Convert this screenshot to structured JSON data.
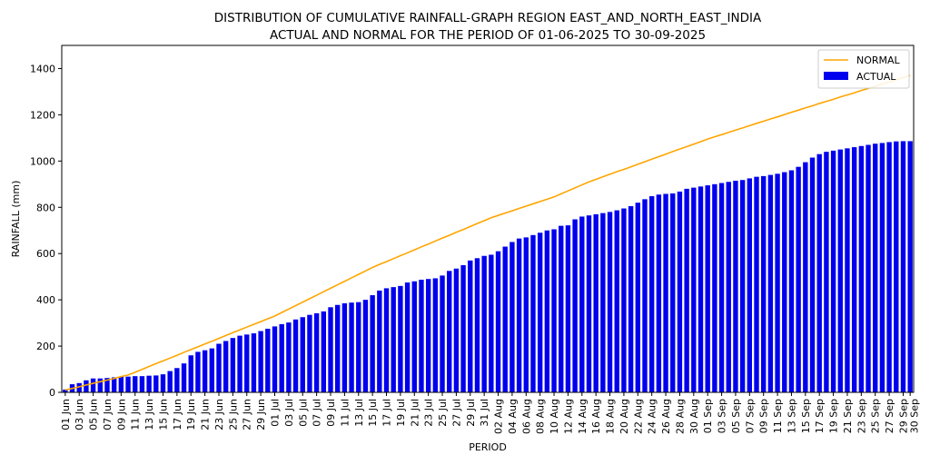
{
  "chart_data": {
    "type": "bar",
    "title": "DISTRIBUTION OF CUMULATIVE RAINFALL-GRAPH REGION EAST_AND_NORTH_EAST_INDIA",
    "subtitle": "ACTUAL AND NORMAL FOR THE PERIOD OF 01-06-2025 TO 30-09-2025",
    "xlabel": "PERIOD",
    "ylabel": "RAINFALL (mm)",
    "ylim": [
      0,
      1500
    ],
    "yticks": [
      0,
      200,
      400,
      600,
      800,
      1000,
      1200,
      1400
    ],
    "grid": false,
    "legend_placement": "top-right",
    "colors": {
      "normal": "#FFA500",
      "actual": "#0000EE"
    },
    "tick_labels": [
      "01 Jun",
      "03 Jun",
      "05 Jun",
      "07 Jun",
      "09 Jun",
      "11 Jun",
      "13 Jun",
      "15 Jun",
      "17 Jun",
      "19 Jun",
      "21 Jun",
      "23 Jun",
      "25 Jun",
      "27 Jun",
      "29 Jun",
      "01 Jul",
      "03 Jul",
      "05 Jul",
      "07 Jul",
      "09 Jul",
      "11 Jul",
      "13 Jul",
      "15 Jul",
      "17 Jul",
      "19 Jul",
      "21 Jul",
      "23 Jul",
      "25 Jul",
      "27 Jul",
      "29 Jul",
      "31 Jul",
      "02 Aug",
      "04 Aug",
      "06 Aug",
      "08 Aug",
      "10 Aug",
      "12 Aug",
      "14 Aug",
      "16 Aug",
      "18 Aug",
      "20 Aug",
      "22 Aug",
      "24 Aug",
      "26 Aug",
      "28 Aug",
      "30 Aug",
      "01 Sep",
      "03 Sep",
      "05 Sep",
      "07 Sep",
      "09 Sep",
      "11 Sep",
      "13 Sep",
      "15 Sep",
      "17 Sep",
      "19 Sep",
      "21 Sep",
      "23 Sep",
      "25 Sep",
      "27 Sep",
      "29 Sep",
      "30 Sep"
    ],
    "tick_days": [
      0,
      2,
      4,
      6,
      8,
      10,
      12,
      14,
      16,
      18,
      20,
      22,
      24,
      26,
      28,
      30,
      32,
      34,
      36,
      38,
      40,
      42,
      44,
      46,
      48,
      50,
      52,
      54,
      56,
      58,
      60,
      62,
      64,
      66,
      68,
      70,
      72,
      74,
      76,
      78,
      80,
      82,
      84,
      86,
      88,
      90,
      92,
      94,
      96,
      98,
      100,
      102,
      104,
      106,
      108,
      110,
      112,
      114,
      116,
      118,
      120,
      121
    ],
    "series": [
      {
        "name": "NORMAL",
        "type": "line",
        "values": [
          10,
          17,
          24,
          32,
          39,
          46,
          53,
          60,
          68,
          75,
          87,
          99,
          112,
          124,
          136,
          148,
          160,
          173,
          185,
          197,
          209,
          221,
          233,
          246,
          258,
          270,
          282,
          294,
          306,
          318,
          330,
          345,
          360,
          375,
          390,
          405,
          420,
          435,
          450,
          465,
          480,
          495,
          510,
          525,
          540,
          553,
          565,
          578,
          591,
          603,
          616,
          629,
          641,
          654,
          667,
          679,
          692,
          704,
          717,
          730,
          742,
          755,
          765,
          775,
          785,
          795,
          805,
          815,
          825,
          835,
          845,
          858,
          871,
          884,
          897,
          910,
          921,
          932,
          943,
          954,
          964,
          975,
          986,
          997,
          1008,
          1019,
          1030,
          1041,
          1052,
          1062,
          1073,
          1084,
          1095,
          1105,
          1114,
          1124,
          1134,
          1143,
          1153,
          1163,
          1172,
          1182,
          1191,
          1201,
          1211,
          1220,
          1230,
          1239,
          1249,
          1258,
          1267,
          1277,
          1286,
          1295,
          1305,
          1314,
          1323,
          1333,
          1342,
          1351,
          1361,
          1370
        ]
      },
      {
        "name": "ACTUAL",
        "type": "bar",
        "values": [
          12,
          35,
          40,
          52,
          60,
          60,
          62,
          65,
          68,
          68,
          70,
          70,
          72,
          73,
          78,
          92,
          105,
          125,
          160,
          175,
          182,
          190,
          210,
          222,
          235,
          245,
          250,
          255,
          265,
          275,
          285,
          295,
          302,
          315,
          325,
          335,
          342,
          350,
          368,
          378,
          385,
          388,
          390,
          400,
          420,
          440,
          450,
          455,
          460,
          475,
          480,
          487,
          490,
          493,
          505,
          525,
          535,
          550,
          570,
          580,
          590,
          595,
          610,
          630,
          650,
          665,
          670,
          680,
          690,
          700,
          705,
          720,
          722,
          748,
          760,
          765,
          770,
          775,
          780,
          787,
          795,
          805,
          820,
          835,
          848,
          855,
          858,
          860,
          868,
          880,
          885,
          890,
          895,
          900,
          905,
          910,
          915,
          918,
          925,
          932,
          935,
          940,
          945,
          952,
          960,
          975,
          995,
          1015,
          1030,
          1040,
          1045,
          1050,
          1055,
          1060,
          1065,
          1070,
          1075,
          1078,
          1082,
          1085,
          1086,
          1086
        ]
      }
    ]
  }
}
